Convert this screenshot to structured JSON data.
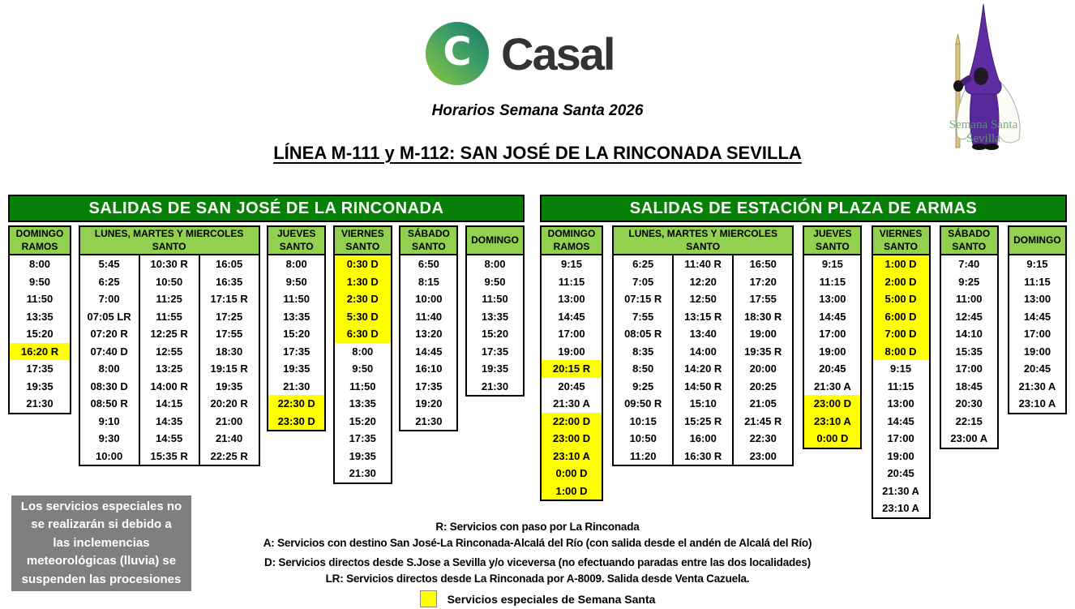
{
  "brand": {
    "name": "Casal",
    "subtitle": "Horarios Semana Santa 2026",
    "logo_icon": "c-circle-icon"
  },
  "title": "LÍNEA M-111 y M-112: SAN JOSÉ DE LA RINCONADA SEVILLA",
  "nazareno_caption": "Semana Santa\nSevilla",
  "colors": {
    "board_green": "#078007",
    "subheader_green": "#92D050",
    "highlight_yellow": "#FFFF00",
    "notice_gray": "#7F7F7F",
    "logo_green": "#8DC63F",
    "logo_teal": "#1B7868",
    "hood_purple": "#5E2DA3"
  },
  "boards": [
    {
      "title": "SALIDAS DE SAN JOSÉ DE LA RINCONADA",
      "groups": [
        {
          "header": "DOMINGO\nRAMOS",
          "cols": [
            [
              "8:00",
              "9:50",
              "11:50",
              "13:35",
              "15:20",
              {
                "v": "16:20 R",
                "hl": true
              },
              "17:35",
              "19:35",
              "21:30"
            ]
          ]
        },
        {
          "header": "LUNES, MARTES Y MIERCOLES\nSANTO",
          "cols": [
            [
              "5:45",
              "6:25",
              "7:00",
              "07:05 LR",
              "07:20 R",
              "07:40 D",
              "8:00",
              "08:30 D",
              "08:50 R",
              "9:10",
              "9:30",
              "10:00"
            ],
            [
              "10:30 R",
              "10:50",
              "11:25",
              "11:55",
              "12:25 R",
              "12:55",
              "13:25",
              "14:00 R",
              "14:15",
              "14:35",
              "14:55",
              "15:35 R"
            ],
            [
              "16:05",
              "16:35",
              "17:15 R",
              "17:25",
              "17:55",
              "18:30",
              "19:15 R",
              "19:35",
              "20:20 R",
              "21:00",
              "21:40",
              "22:25 R"
            ]
          ]
        },
        {
          "header": "JUEVES\nSANTO",
          "cols": [
            [
              "8:00",
              "9:50",
              "11:50",
              "13:35",
              "15:20",
              "17:35",
              "19:35",
              "21:30",
              {
                "v": "22:30 D",
                "hl": true
              },
              {
                "v": "23:30 D",
                "hl": true
              }
            ]
          ]
        },
        {
          "header": "VIERNES\nSANTO",
          "cols": [
            [
              {
                "v": "0:30 D",
                "hl": true
              },
              {
                "v": "1:30 D",
                "hl": true
              },
              {
                "v": "2:30 D",
                "hl": true
              },
              {
                "v": "5:30 D",
                "hl": true
              },
              {
                "v": "6:30 D",
                "hl": true
              },
              "8:00",
              "9:50",
              "11:50",
              "13:35",
              "15:20",
              "17:35",
              "19:35",
              "21:30"
            ]
          ]
        },
        {
          "header": "SÁBADO\nSANTO",
          "cols": [
            [
              "6:50",
              "8:15",
              "10:00",
              "11:40",
              "13:20",
              "14:45",
              "16:10",
              "17:35",
              "19:20",
              "21:30"
            ]
          ]
        },
        {
          "header": "DOMINGO",
          "cols": [
            [
              "8:00",
              "9:50",
              "11:50",
              "13:35",
              "15:20",
              "17:35",
              "19:35",
              "21:30"
            ]
          ]
        }
      ]
    },
    {
      "title": "SALIDAS DE ESTACIÓN PLAZA DE ARMAS",
      "groups": [
        {
          "header": "DOMINGO\nRAMOS",
          "cols": [
            [
              "9:15",
              "11:15",
              "13:00",
              "14:45",
              "17:00",
              "19:00",
              {
                "v": "20:15 R",
                "hl": true
              },
              "20:45",
              "21:30 A",
              {
                "v": "22:00 D",
                "hl": true
              },
              {
                "v": "23:00 D",
                "hl": true
              },
              {
                "v": "23:10 A",
                "hl": true
              },
              {
                "v": "0:00 D",
                "hl": true
              },
              {
                "v": "1:00 D",
                "hl": true
              }
            ]
          ]
        },
        {
          "header": "LUNES, MARTES Y MIERCOLES\nSANTO",
          "cols": [
            [
              "6:25",
              "7:05",
              "07:15 R",
              "7:55",
              "08:05 R",
              "8:35",
              "8:50",
              "9:25",
              "09:50 R",
              "10:15",
              "10:50",
              "11:20"
            ],
            [
              "11:40 R",
              "12:20",
              "12:50",
              "13:15 R",
              "13:40",
              "14:00",
              "14:20 R",
              "14:50 R",
              "15:10",
              "15:25 R",
              "16:00",
              "16:30 R"
            ],
            [
              "16:50",
              "17:20",
              "17:55",
              "18:30 R",
              "19:00",
              "19:35 R",
              "20:00",
              "20:25",
              "21:05",
              "21:45 R",
              "22:30",
              "23:00"
            ]
          ]
        },
        {
          "header": "JUEVES\nSANTO",
          "cols": [
            [
              "9:15",
              "11:15",
              "13:00",
              "14:45",
              "17:00",
              "19:00",
              "20:45",
              "21:30 A",
              {
                "v": "23:00 D",
                "hl": true
              },
              {
                "v": "23:10 A",
                "hl": true
              },
              {
                "v": "0:00 D",
                "hl": true
              }
            ]
          ]
        },
        {
          "header": "VIERNES\nSANTO",
          "cols": [
            [
              {
                "v": "1:00 D",
                "hl": true
              },
              {
                "v": "2:00 D",
                "hl": true
              },
              {
                "v": "5:00 D",
                "hl": true
              },
              {
                "v": "6:00 D",
                "hl": true
              },
              {
                "v": "7:00 D",
                "hl": true
              },
              {
                "v": "8:00 D",
                "hl": true
              },
              "9:15",
              "11:15",
              "13:00",
              "14:45",
              "17:00",
              "19:00",
              "20:45",
              "21:30 A",
              "23:10 A"
            ]
          ]
        },
        {
          "header": "SÁBADO\nSANTO",
          "cols": [
            [
              "7:40",
              "9:25",
              "11:00",
              "12:45",
              "14:10",
              "15:35",
              "17:00",
              "18:45",
              "20:30",
              "22:15",
              "23:00 A"
            ]
          ]
        },
        {
          "header": "DOMINGO",
          "cols": [
            [
              "9:15",
              "11:15",
              "13:00",
              "14:45",
              "17:00",
              "19:00",
              "20:45",
              "21:30 A",
              "23:10 A"
            ]
          ]
        }
      ]
    }
  ],
  "notice": {
    "text": "Los servicios especiales no\nse realizarán si debido a\nlas inclemencias\nmeteorológicas (lluvia) se\nsuspenden las procesiones"
  },
  "legend": {
    "lines": [
      "R: Servicios con paso por La Rinconada",
      "A: Servicios con destino San José-La Rinconada-Alcalá del Río  (con salida desde el andén de Alcalá del Río)",
      "D: Servicios directos desde S.Jose a Sevilla y/o viceversa (no efectuando paradas entre las dos localidades)",
      "LR: Servicios directos desde La Rinconada por A-8009. Salida desde Venta Cazuela."
    ],
    "special": {
      "label": "Servicios especiales de Semana Santa",
      "swatch_color": "#FFFF00"
    }
  }
}
